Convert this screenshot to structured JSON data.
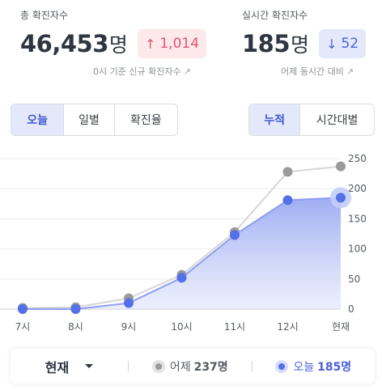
{
  "stats": {
    "total": {
      "label": "총 확진자수",
      "value": "46,453",
      "unit": "명",
      "delta_arrow": "↑",
      "delta": "1,014",
      "note": "0시 기준 신규 확진자수",
      "note_icon": "↗"
    },
    "realtime": {
      "label": "실시간 확진자수",
      "value": "185",
      "unit": "명",
      "delta_arrow": "↓",
      "delta": "52",
      "note": "어제 동시간 대비",
      "note_icon": "↗"
    }
  },
  "tabs_left": [
    {
      "label": "오늘",
      "active": true
    },
    {
      "label": "일별",
      "active": false
    },
    {
      "label": "확진율",
      "active": false
    }
  ],
  "tabs_right": [
    {
      "label": "누적",
      "active": true
    },
    {
      "label": "시간대별",
      "active": false
    }
  ],
  "chart_data": {
    "type": "line",
    "categories": [
      "7시",
      "8시",
      "9시",
      "10시",
      "11시",
      "12시",
      "현재"
    ],
    "series": [
      {
        "name": "어제",
        "values": [
          2,
          3,
          18,
          57,
          128,
          228,
          237
        ],
        "color": "#9a9a9a"
      },
      {
        "name": "오늘",
        "values": [
          0,
          0,
          10,
          52,
          123,
          181,
          185
        ],
        "color": "#5470e8"
      }
    ],
    "y_ticks": [
      "0",
      "50",
      "100",
      "150",
      "200",
      "250"
    ],
    "ylim": [
      0,
      250
    ],
    "grid": true,
    "legend": "bottom"
  },
  "legend_bar": {
    "select_label": "현재",
    "yesterday_label": "어제",
    "yesterday_value": "237명",
    "today_label": "오늘",
    "today_value": "185명"
  },
  "colors": {
    "accent": "#4a62d8",
    "increase": "#e2576e",
    "yesterday": "#9a9a9a",
    "today": "#5470e8"
  }
}
